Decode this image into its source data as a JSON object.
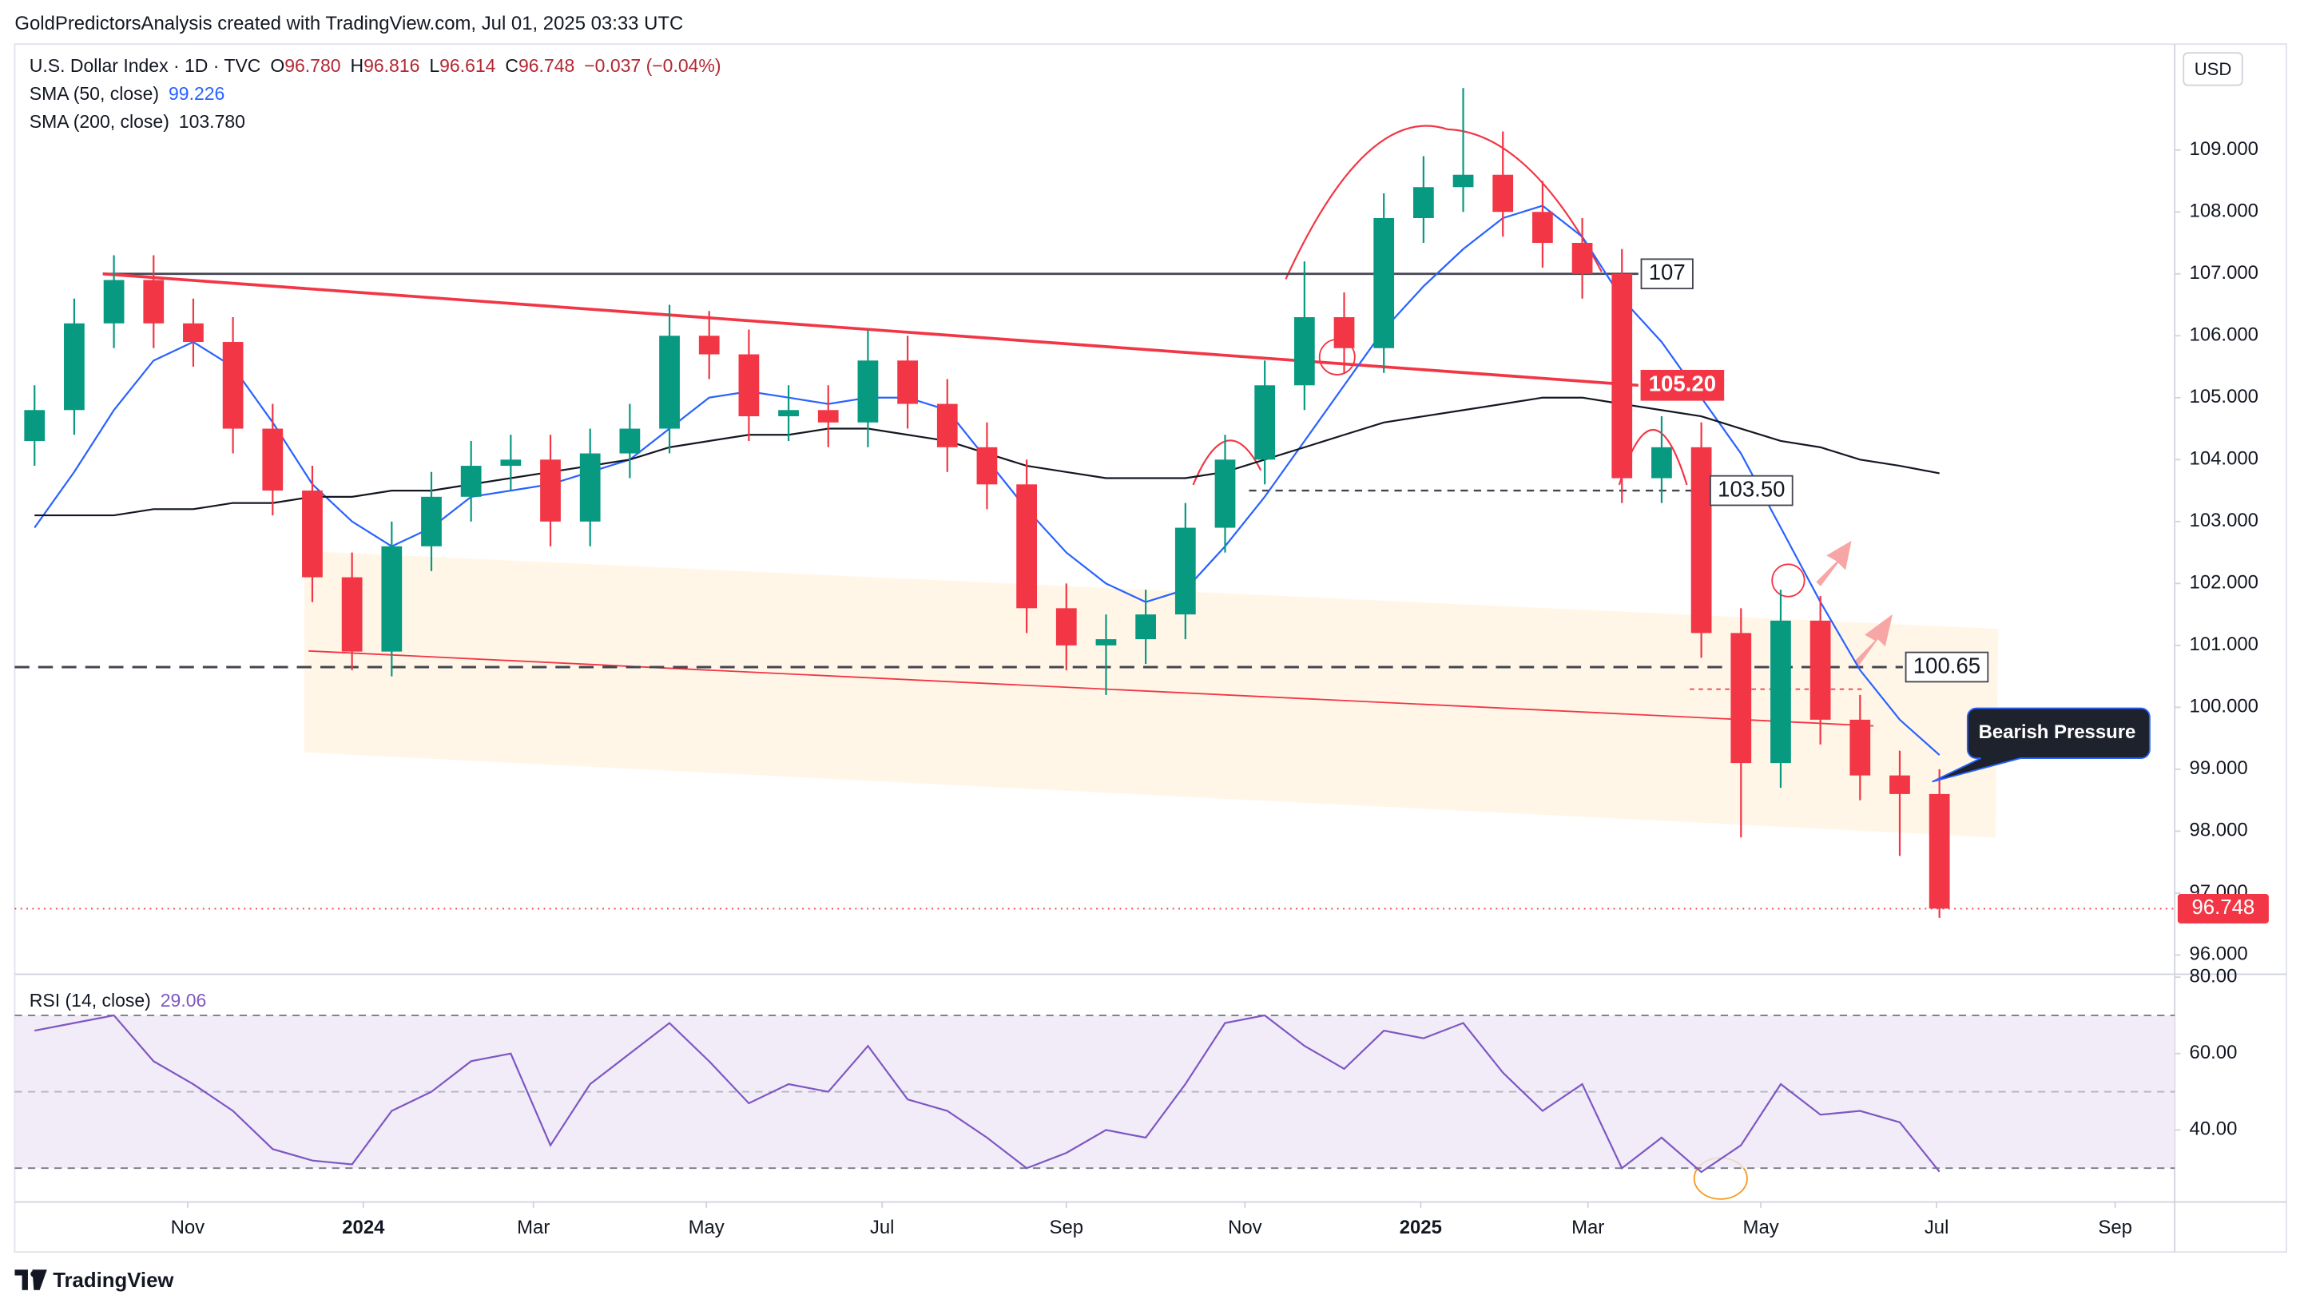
{
  "header": {
    "author_line": "GoldPredictorsAnalysis created with TradingView.com, Jul 01, 2025 03:33 UTC"
  },
  "chart_data": {
    "type": "candlestick",
    "symbol": "U.S. Dollar Index · 1D · TVC",
    "ohlc_labels": [
      "O",
      "H",
      "L",
      "C"
    ],
    "ohlc_values": [
      "96.780",
      "96.816",
      "96.614",
      "96.748"
    ],
    "change": "−0.037 (−0.04%)",
    "currency": "USD",
    "up_color": "#089981",
    "down_color": "#f23645",
    "x": [
      7,
      21,
      35,
      49,
      63,
      77,
      91,
      105,
      119,
      133,
      147,
      161,
      175,
      189,
      203,
      217,
      231,
      245,
      259,
      273,
      287,
      301,
      315,
      329,
      343,
      357,
      371,
      385,
      399,
      413,
      427,
      441,
      455,
      469,
      483,
      497,
      511,
      525,
      539,
      553,
      567,
      581,
      595,
      609,
      623,
      637,
      651,
      665,
      679
    ],
    "open": [
      104.3,
      104.8,
      106.2,
      106.9,
      106.2,
      105.9,
      104.5,
      103.5,
      102.1,
      100.9,
      102.6,
      103.4,
      103.9,
      104.0,
      103.0,
      104.1,
      104.5,
      106.0,
      105.7,
      104.7,
      104.8,
      104.6,
      105.6,
      104.9,
      104.2,
      103.6,
      101.6,
      101.0,
      101.1,
      101.5,
      102.9,
      104.0,
      105.2,
      106.3,
      105.8,
      107.9,
      108.4,
      108.6,
      108.0,
      107.5,
      107.0,
      103.7,
      104.2,
      101.2,
      99.1,
      101.4,
      99.8,
      98.9,
      98.6
    ],
    "high": [
      105.2,
      106.6,
      107.3,
      107.3,
      106.6,
      106.3,
      104.9,
      103.9,
      102.5,
      103.0,
      103.8,
      104.3,
      104.4,
      104.4,
      104.5,
      104.9,
      106.5,
      106.4,
      106.1,
      105.2,
      105.2,
      106.1,
      106.0,
      105.3,
      104.6,
      104.0,
      102.0,
      101.5,
      101.9,
      103.3,
      104.4,
      105.6,
      107.2,
      106.7,
      108.3,
      108.9,
      110.0,
      109.3,
      108.5,
      107.9,
      107.4,
      104.7,
      104.6,
      101.6,
      101.9,
      101.8,
      100.2,
      99.3,
      99.0
    ],
    "low": [
      103.9,
      104.4,
      105.8,
      105.8,
      105.5,
      104.1,
      103.1,
      101.7,
      100.6,
      100.5,
      102.2,
      103.0,
      103.5,
      102.6,
      102.6,
      103.7,
      104.1,
      105.3,
      104.3,
      104.3,
      104.2,
      104.2,
      104.5,
      103.8,
      103.2,
      101.2,
      100.6,
      100.2,
      100.7,
      101.1,
      102.5,
      103.6,
      104.8,
      105.4,
      105.4,
      107.5,
      108.0,
      107.6,
      107.1,
      106.6,
      103.3,
      103.3,
      100.8,
      97.9,
      98.7,
      99.4,
      98.5,
      97.6,
      96.6
    ],
    "close": [
      104.8,
      106.2,
      106.9,
      106.2,
      105.9,
      104.5,
      103.5,
      102.1,
      100.9,
      102.6,
      103.4,
      103.9,
      104.0,
      103.0,
      104.1,
      104.5,
      106.0,
      105.7,
      104.7,
      104.8,
      104.6,
      105.6,
      104.9,
      104.2,
      103.6,
      101.6,
      101.0,
      101.1,
      101.5,
      102.9,
      104.0,
      105.2,
      106.3,
      105.8,
      107.9,
      108.4,
      108.6,
      108.0,
      107.5,
      107.0,
      103.7,
      104.2,
      101.2,
      99.1,
      101.4,
      99.8,
      98.9,
      98.6,
      96.75
    ],
    "xlim": [
      0,
      762
    ],
    "xticks": [
      {
        "value": 61,
        "label": "Nov"
      },
      {
        "value": 123,
        "label": "2024"
      },
      {
        "value": 183,
        "label": "Mar"
      },
      {
        "value": 244,
        "label": "May"
      },
      {
        "value": 306,
        "label": "Jul"
      },
      {
        "value": 371,
        "label": "Sep"
      },
      {
        "value": 434,
        "label": "Nov"
      },
      {
        "value": 496,
        "label": "2025"
      },
      {
        "value": 555,
        "label": "Mar"
      },
      {
        "value": 616,
        "label": "May"
      },
      {
        "value": 678,
        "label": "Jul"
      },
      {
        "value": 741,
        "label": "Sep"
      }
    ],
    "ylim": [
      95.69,
      110.71
    ],
    "yticks": [
      {
        "value": 96,
        "label": "96.000"
      },
      {
        "value": 97,
        "label": "97.000"
      },
      {
        "value": 98,
        "label": "98.000"
      },
      {
        "value": 99,
        "label": "99.000"
      },
      {
        "value": 100,
        "label": "100.000"
      },
      {
        "value": 101,
        "label": "101.000"
      },
      {
        "value": 102,
        "label": "102.000"
      },
      {
        "value": 103,
        "label": "103.000"
      },
      {
        "value": 104,
        "label": "104.000"
      },
      {
        "value": 105,
        "label": "105.000"
      },
      {
        "value": 106,
        "label": "106.000"
      },
      {
        "value": 107,
        "label": "107.000"
      },
      {
        "value": 108,
        "label": "108.000"
      },
      {
        "value": 109,
        "label": "109.000"
      }
    ],
    "last_price": {
      "value": 96.748,
      "label": "96.748"
    },
    "overlays": [
      {
        "name": "SMA (50, close)",
        "value_label": "99.226",
        "color": "#2962ff",
        "values": [
          102.9,
          103.8,
          104.8,
          105.6,
          105.9,
          105.5,
          104.6,
          103.6,
          103.0,
          102.6,
          102.9,
          103.4,
          103.5,
          103.6,
          103.8,
          104.0,
          104.5,
          105.0,
          105.1,
          105.0,
          104.9,
          105.0,
          105.0,
          104.8,
          104.0,
          103.2,
          102.5,
          102.0,
          101.7,
          101.9,
          102.6,
          103.4,
          104.3,
          105.2,
          106.1,
          106.8,
          107.4,
          107.9,
          108.1,
          107.6,
          106.6,
          105.9,
          105.0,
          104.1,
          102.9,
          101.7,
          100.6,
          99.8,
          99.23
        ]
      },
      {
        "name": "SMA (200, close)",
        "value_label": "103.780",
        "color": "#131722",
        "values": [
          103.1,
          103.1,
          103.1,
          103.2,
          103.2,
          103.3,
          103.3,
          103.4,
          103.4,
          103.5,
          103.5,
          103.6,
          103.7,
          103.8,
          103.9,
          104.0,
          104.2,
          104.3,
          104.4,
          104.4,
          104.5,
          104.5,
          104.4,
          104.3,
          104.1,
          103.9,
          103.8,
          103.7,
          103.7,
          103.7,
          103.8,
          104.0,
          104.2,
          104.4,
          104.6,
          104.7,
          104.8,
          104.9,
          105.0,
          105.0,
          104.9,
          104.8,
          104.7,
          104.5,
          104.3,
          104.2,
          104.0,
          103.9,
          103.78
        ]
      }
    ],
    "levels": [
      {
        "value": 107,
        "label": "107"
      },
      {
        "value": 105.2,
        "label": "105.20"
      },
      {
        "value": 103.5,
        "label": "103.50"
      },
      {
        "value": 100.65,
        "label": "100.65"
      }
    ],
    "annotation": "Bearish Pressure",
    "rsi": {
      "name": "RSI (14, close)",
      "value_label": "29.06",
      "color": "#7e57c2",
      "values": [
        66,
        68,
        70,
        58,
        52,
        45,
        35,
        32,
        31,
        45,
        50,
        58,
        60,
        36,
        52,
        60,
        68,
        58,
        47,
        52,
        50,
        62,
        48,
        45,
        38,
        30,
        34,
        40,
        38,
        52,
        68,
        70,
        62,
        56,
        66,
        64,
        68,
        55,
        45,
        52,
        30,
        38,
        29,
        36,
        52,
        44,
        45,
        42,
        29.06
      ],
      "ylim": [
        21.15,
        80
      ],
      "yticks": [
        {
          "value": 40,
          "label": "40.00"
        },
        {
          "value": 60,
          "label": "60.00"
        },
        {
          "value": 80,
          "label": "80.00"
        }
      ],
      "band": [
        30,
        70
      ],
      "midline": 50
    }
  },
  "footer": {
    "brand": "TradingView"
  }
}
